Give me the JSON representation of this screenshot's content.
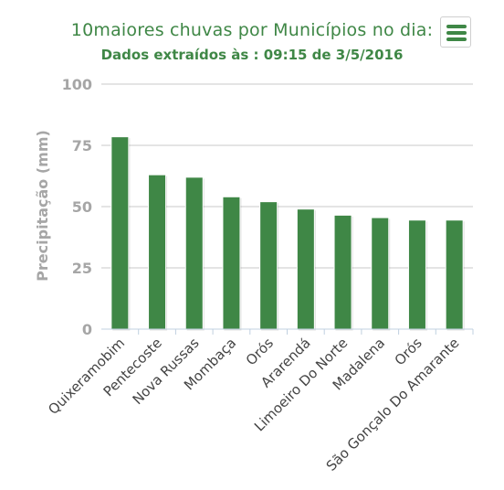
{
  "chart_data": {
    "type": "bar",
    "title": "10maiores chuvas por Municípios no dia:",
    "subtitle": "Dados extraídos às : 09:15 de 3/5/2016",
    "xlabel": "",
    "ylabel": "Precipitação (mm)",
    "ylim": [
      0,
      100
    ],
    "yticks": [
      "0",
      "25",
      "50",
      "75",
      "100"
    ],
    "grid": true,
    "legend": "none",
    "categories": [
      "Quixeramobim",
      "Pentecoste",
      "Nova Russas",
      "Mombaça",
      "Orós",
      "Ararendá",
      "Limoeiro Do Norte",
      "Madalena",
      "Orós",
      "São Gonçalo Do Amarante"
    ],
    "values": [
      78.5,
      63,
      62,
      54,
      52,
      49,
      46.5,
      45.5,
      44.5,
      44.5
    ],
    "bar_color": "#3f8746"
  },
  "menu": {
    "icon": "hamburger-menu-icon"
  }
}
